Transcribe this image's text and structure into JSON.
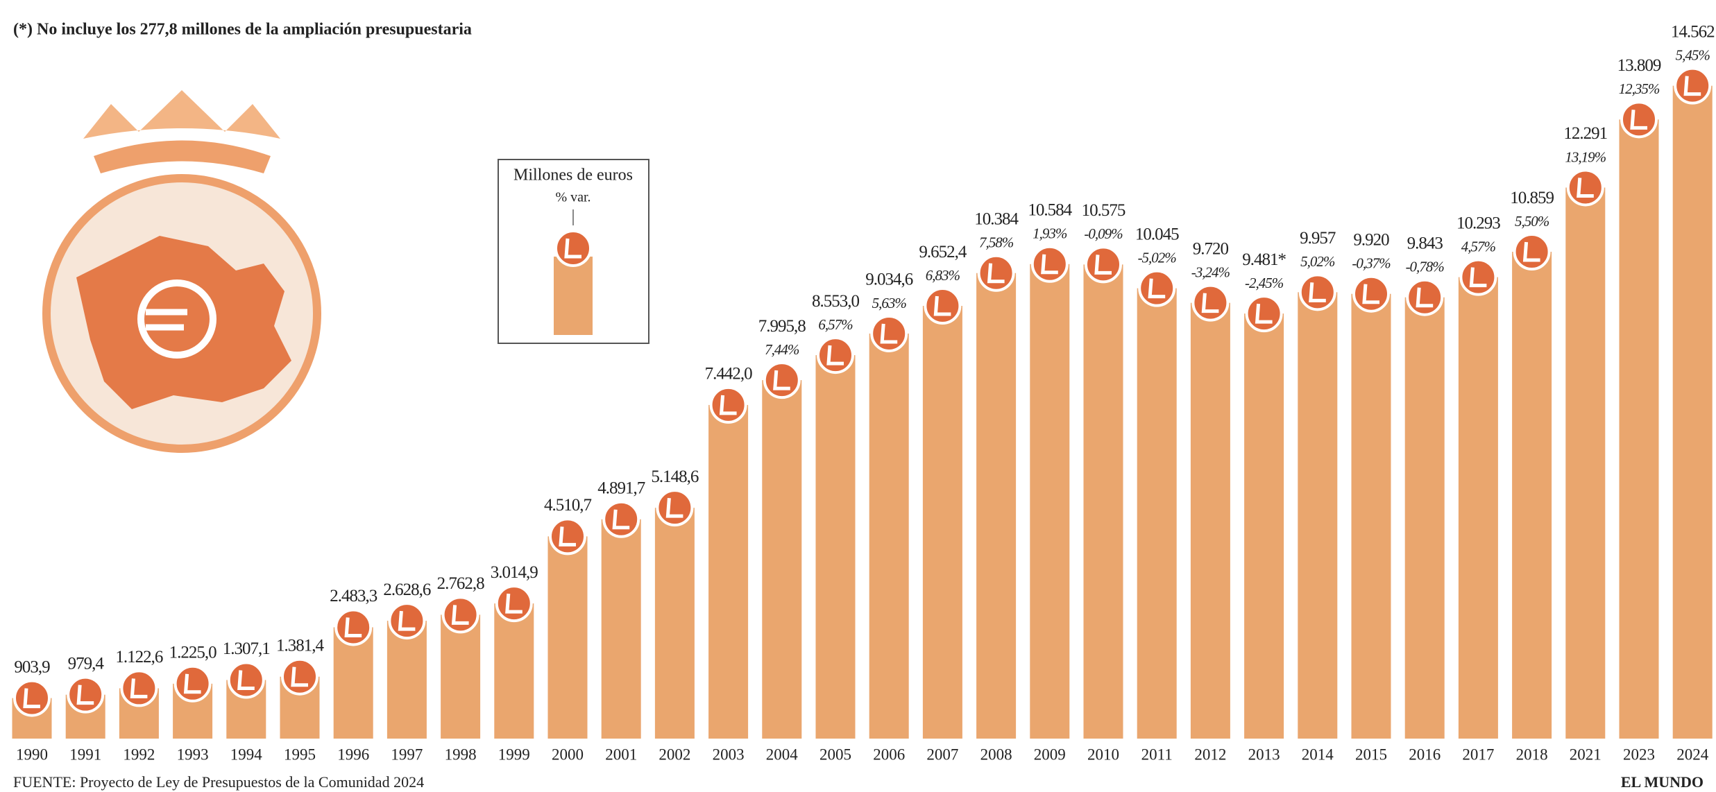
{
  "chart_data": {
    "type": "bar",
    "subtitle": "(*) No incluye los 277,8 millones de la ampliación presupuestaria",
    "legend_label": "Millones de euros",
    "legend_pct_label": "% var.",
    "source": "FUENTE: Proyecto de Ley de Presupuestos de la Comunidad 2024",
    "credit": "EL MUNDO",
    "categories": [
      "1990",
      "1991",
      "1992",
      "1993",
      "1994",
      "1995",
      "1996",
      "1997",
      "1998",
      "1999",
      "2000",
      "2001",
      "2002",
      "2003",
      "2004",
      "2005",
      "2006",
      "2007",
      "2008",
      "2009",
      "2010",
      "2011",
      "2012",
      "2013",
      "2014",
      "2015",
      "2016",
      "2017",
      "2018",
      "2021",
      "2023",
      "2024"
    ],
    "values": [
      903.9,
      979.4,
      1122.6,
      1225.0,
      1307.1,
      1381.4,
      2483.3,
      2628.6,
      2762.8,
      3014.9,
      4510.7,
      4891.7,
      5148.6,
      7442.0,
      7995.8,
      8553.0,
      9034.6,
      9652.4,
      10384,
      10584,
      10575,
      10045,
      9720,
      9481,
      9957,
      9920,
      9843,
      10293,
      10859,
      12291,
      13809,
      14562
    ],
    "value_labels": [
      "903,9",
      "979,4",
      "1.122,6",
      "1.225,0",
      "1.307,1",
      "1.381,4",
      "2.483,3",
      "2.628,6",
      "2.762,8",
      "3.014,9",
      "4.510,7",
      "4.891,7",
      "5.148,6",
      "7.442,0",
      "7.995,8",
      "8.553,0",
      "9.034,6",
      "9.652,4",
      "10.384",
      "10.584",
      "10.575",
      "10.045",
      "9.720",
      "9.481*",
      "9.957",
      "9.920",
      "9.843",
      "10.293",
      "10.859",
      "12.291",
      "13.809",
      "14.562"
    ],
    "pct_var": {
      "values": [
        null,
        null,
        null,
        null,
        null,
        null,
        null,
        null,
        null,
        null,
        null,
        null,
        null,
        null,
        7.44,
        6.57,
        5.63,
        6.83,
        7.58,
        1.93,
        -0.09,
        -5.02,
        -3.24,
        -2.45,
        5.02,
        -0.37,
        -0.78,
        4.57,
        5.5,
        13.19,
        12.35,
        5.45
      ],
      "value_labels": [
        null,
        null,
        null,
        null,
        null,
        null,
        null,
        null,
        null,
        null,
        null,
        null,
        null,
        null,
        "7,44%",
        "6,57%",
        "5,63%",
        "6,83%",
        "7,58%",
        "1,93%",
        "-0,09%",
        "-5,02%",
        "-3,24%",
        "-2,45%",
        "5,02%",
        "-0,37%",
        "-0,78%",
        "4,57%",
        "5,50%",
        "13,19%",
        "12,35%",
        "5,45%"
      ]
    },
    "color": "#eaa66e",
    "marker_color": "#e0693b",
    "ylim": [
      0,
      15500
    ]
  }
}
